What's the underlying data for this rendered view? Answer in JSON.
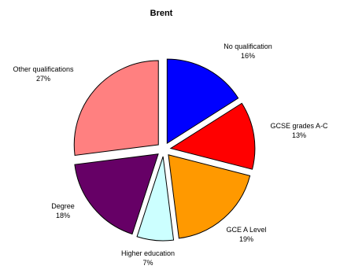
{
  "chart_data": {
    "type": "pie",
    "title": "Brent",
    "exploded": true,
    "start_angle_degrees_clockwise_from_top": 0,
    "slices": [
      {
        "label": "No qualification",
        "percent_label": "16%",
        "value": 16,
        "color": "#0000ff"
      },
      {
        "label": "GCSE grades A-C",
        "percent_label": "13%",
        "value": 13,
        "color": "#ff0000"
      },
      {
        "label": "GCE A Level",
        "percent_label": "19%",
        "value": 19,
        "color": "#ff9900"
      },
      {
        "label": "Higher education",
        "percent_label": "7%",
        "value": 7,
        "color": "#ccffff"
      },
      {
        "label": "Degree",
        "percent_label": "18%",
        "value": 18,
        "color": "#660066"
      },
      {
        "label": "Other qualifications",
        "percent_label": "27%",
        "value": 27,
        "color": "#ff8080"
      }
    ]
  }
}
